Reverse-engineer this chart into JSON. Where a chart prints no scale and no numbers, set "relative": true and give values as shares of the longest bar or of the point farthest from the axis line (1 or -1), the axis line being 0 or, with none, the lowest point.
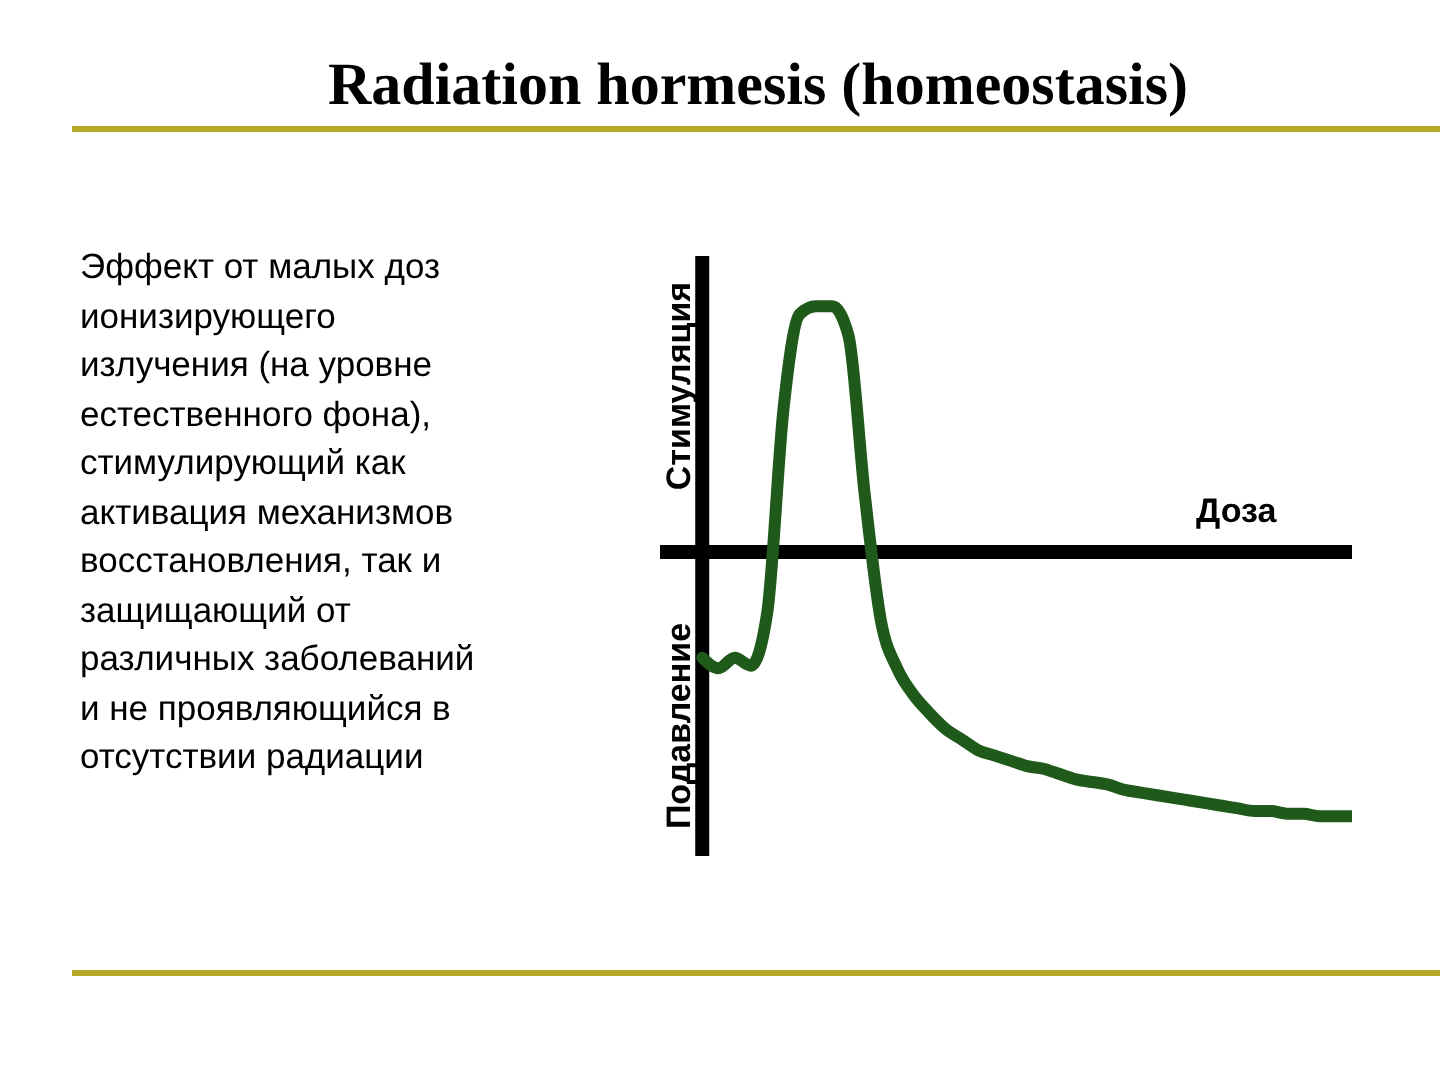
{
  "chart_data": {
    "type": "line",
    "relative": true,
    "title": "Radiation  hormesis (homeostasis)",
    "xlabel": "Доза",
    "ylabel": "Стимуляция",
    "annotations": [
      "Эффект от малых доз\nионизирующего\nизлучения (на уровне\nестественного фона),\nстимулирующий  как\nактивация  механизмов\nвосстановления, так и\nзащищающий  от\nразличных заболеваний\nи не проявляющийся  в\nотсутствии  радиации",
      "Подавление"
    ],
    "categories": [
      null,
      null,
      null,
      null,
      null,
      null,
      null,
      null,
      null,
      null,
      null,
      null,
      null,
      null,
      null,
      null,
      null,
      null,
      null,
      null,
      null,
      null,
      null,
      null,
      null,
      null,
      null,
      null,
      null,
      null,
      null,
      null,
      null,
      null,
      null,
      null,
      null,
      null,
      null,
      null,
      null
    ],
    "series": [
      {
        "color": "#1f5a1a",
        "values": [
          -0.4,
          -0.44,
          -0.4,
          -0.43,
          -0.23,
          0.54,
          0.9,
          0.93,
          0.93,
          0.82,
          0.22,
          -0.26,
          -0.44,
          -0.54,
          -0.61,
          -0.67,
          -0.71,
          -0.75,
          -0.77,
          -0.79,
          -0.81,
          -0.82,
          -0.84,
          -0.86,
          -0.87,
          -0.88,
          -0.9,
          -0.91,
          -0.92,
          -0.93,
          -0.94,
          -0.95,
          -0.96,
          -0.97,
          -0.98,
          -0.98,
          -0.99,
          -0.99,
          -1.0,
          -1.0,
          -1.0
        ]
      }
    ],
    "grid": false,
    "legend": false,
    "marker": "none",
    "line_style": "solid"
  }
}
